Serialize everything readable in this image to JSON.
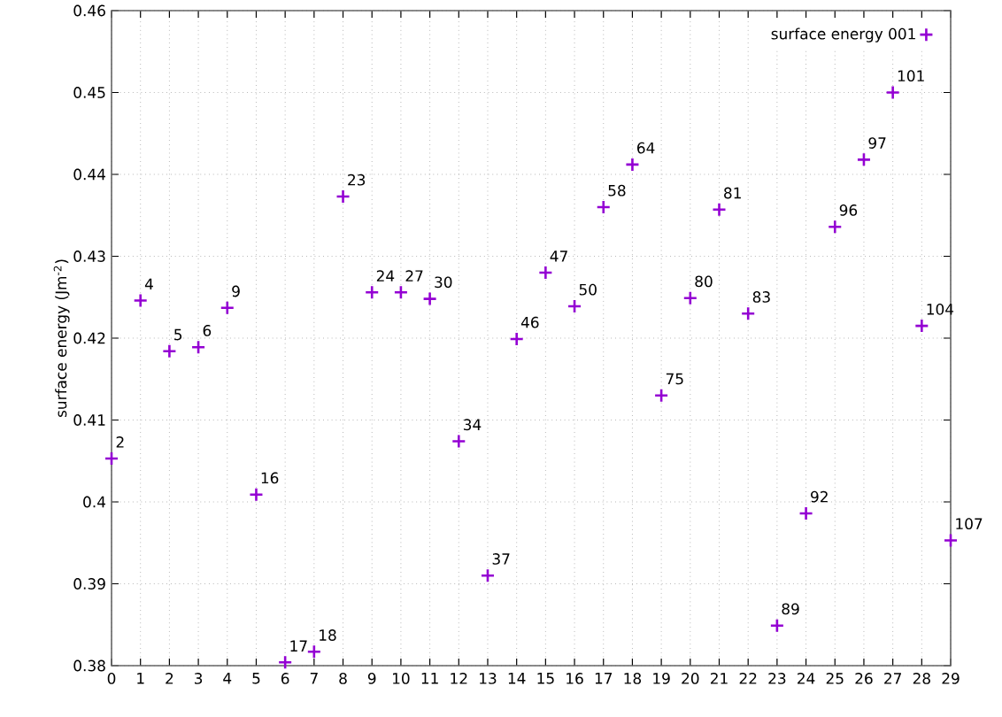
{
  "chart_data": {
    "type": "scatter",
    "ylabel": "surface energy (Jm$^{-2}$)",
    "x": [
      0,
      1,
      2,
      3,
      4,
      5,
      6,
      7,
      8,
      9,
      10,
      11,
      12,
      13,
      14,
      15,
      16,
      17,
      18,
      19,
      20,
      21,
      22,
      23,
      24,
      25,
      26,
      27,
      28,
      29
    ],
    "series": [
      {
        "name": "surface energy 001",
        "color": "#9400d3",
        "values": [
          0.4053,
          0.4246,
          0.4184,
          0.4189,
          0.4237,
          0.4009,
          0.3804,
          0.3817,
          0.4373,
          0.4256,
          0.4256,
          0.4248,
          0.4074,
          0.391,
          0.4199,
          0.428,
          0.4239,
          0.436,
          0.4412,
          0.413,
          0.4249,
          0.4357,
          0.423,
          0.3849,
          0.3986,
          0.4336,
          0.4418,
          0.45,
          0.4215,
          0.3953
        ]
      }
    ],
    "xlim": [
      0,
      29
    ],
    "ylim": [
      0.38,
      0.46
    ],
    "xticks": [
      0,
      1,
      2,
      3,
      4,
      5,
      6,
      7,
      8,
      9,
      10,
      11,
      12,
      13,
      14,
      15,
      16,
      17,
      18,
      19,
      20,
      21,
      22,
      23,
      24,
      25,
      26,
      27,
      28,
      29
    ],
    "yticks": [
      0.38,
      0.39,
      0.4,
      0.41,
      0.42,
      0.43,
      0.44,
      0.45,
      0.46
    ],
    "annotations": [
      {
        "text": "2",
        "x": 0,
        "y": 0.4053
      },
      {
        "text": "4",
        "x": 1,
        "y": 0.4246
      },
      {
        "text": "5",
        "x": 2,
        "y": 0.4184
      },
      {
        "text": "6",
        "x": 3,
        "y": 0.4189
      },
      {
        "text": "9",
        "x": 4,
        "y": 0.4237
      },
      {
        "text": "16",
        "x": 5,
        "y": 0.4009
      },
      {
        "text": "17",
        "x": 6,
        "y": 0.3804
      },
      {
        "text": "18",
        "x": 7,
        "y": 0.3817
      },
      {
        "text": "23",
        "x": 8,
        "y": 0.4373
      },
      {
        "text": "24",
        "x": 9,
        "y": 0.4256
      },
      {
        "text": "27",
        "x": 10,
        "y": 0.4256
      },
      {
        "text": "30",
        "x": 11,
        "y": 0.4248
      },
      {
        "text": "34",
        "x": 12,
        "y": 0.4074
      },
      {
        "text": "37",
        "x": 13,
        "y": 0.391
      },
      {
        "text": "46",
        "x": 14,
        "y": 0.4199
      },
      {
        "text": "47",
        "x": 15,
        "y": 0.428
      },
      {
        "text": "50",
        "x": 16,
        "y": 0.4239
      },
      {
        "text": "58",
        "x": 17,
        "y": 0.436
      },
      {
        "text": "64",
        "x": 18,
        "y": 0.4412
      },
      {
        "text": "75",
        "x": 19,
        "y": 0.413
      },
      {
        "text": "80",
        "x": 20,
        "y": 0.4249
      },
      {
        "text": "81",
        "x": 21,
        "y": 0.4357
      },
      {
        "text": "83",
        "x": 22,
        "y": 0.423
      },
      {
        "text": "89",
        "x": 23,
        "y": 0.3849
      },
      {
        "text": "92",
        "x": 24,
        "y": 0.3986
      },
      {
        "text": "96",
        "x": 25,
        "y": 0.4336
      },
      {
        "text": "97",
        "x": 26,
        "y": 0.4418
      },
      {
        "text": "101",
        "x": 27,
        "y": 0.45
      },
      {
        "text": "104",
        "x": 28,
        "y": 0.4215
      },
      {
        "text": "107",
        "x": 29,
        "y": 0.3953
      }
    ],
    "grid": true,
    "legend": "top right",
    "marker": "cross"
  }
}
